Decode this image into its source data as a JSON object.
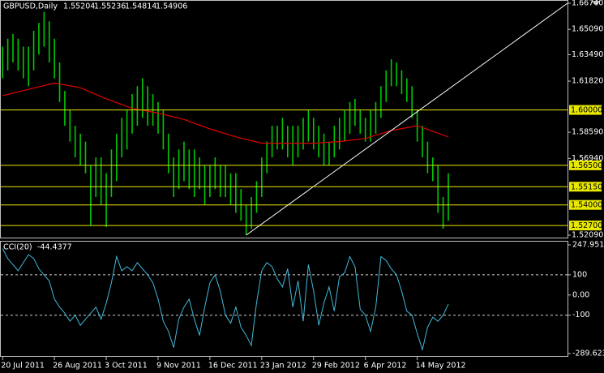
{
  "chart_data": [
    {
      "type": "ohlc",
      "title": "GBPUSD,Daily",
      "quote": [
        1.55204,
        1.55236,
        1.54814,
        1.54906
      ],
      "categories": [
        "20 Jul 2011",
        null,
        null,
        null,
        null,
        null,
        null,
        null,
        null,
        null,
        "26 Aug 2011",
        null,
        null,
        null,
        null,
        null,
        null,
        null,
        null,
        null,
        "3 Oct 2011",
        null,
        null,
        null,
        null,
        null,
        null,
        null,
        null,
        null,
        "9 Nov 2011",
        null,
        null,
        null,
        null,
        null,
        null,
        null,
        null,
        null,
        "16 Dec 2011",
        null,
        null,
        null,
        null,
        null,
        null,
        null,
        null,
        null,
        "23 Jan 2012",
        null,
        null,
        null,
        null,
        null,
        null,
        null,
        null,
        null,
        "29 Feb 2012",
        null,
        null,
        null,
        null,
        null,
        null,
        null,
        null,
        null,
        "6 Apr 2012",
        null,
        null,
        null,
        null,
        null,
        null,
        null,
        null,
        null,
        "14 May 2012",
        null,
        null,
        null,
        null,
        null,
        null
      ],
      "high": [
        1.64,
        1.645,
        1.648,
        1.645,
        1.64,
        1.64,
        1.65,
        1.655,
        1.662,
        1.656,
        1.645,
        1.63,
        1.612,
        1.6,
        1.59,
        1.585,
        1.58,
        1.565,
        1.57,
        1.57,
        1.56,
        1.575,
        1.585,
        1.595,
        1.6,
        1.61,
        1.615,
        1.62,
        1.615,
        1.61,
        1.605,
        1.6,
        1.585,
        1.57,
        1.575,
        1.58,
        1.575,
        1.575,
        1.57,
        1.565,
        1.565,
        1.57,
        1.565,
        1.565,
        1.56,
        1.56,
        1.55,
        1.54,
        1.545,
        1.555,
        1.57,
        1.58,
        1.59,
        1.59,
        1.595,
        1.59,
        1.59,
        1.59,
        1.595,
        1.6,
        1.595,
        1.59,
        1.585,
        1.58,
        1.59,
        1.595,
        1.6,
        1.605,
        1.607,
        1.6,
        1.595,
        1.6,
        1.605,
        1.615,
        1.625,
        1.632,
        1.63,
        1.625,
        1.62,
        1.615,
        1.6,
        1.59,
        1.58,
        1.57,
        1.565,
        1.545,
        1.56
      ],
      "low": [
        1.62,
        1.625,
        1.63,
        1.625,
        1.62,
        1.615,
        1.625,
        1.635,
        1.64,
        1.63,
        1.62,
        1.605,
        1.59,
        1.58,
        1.57,
        1.565,
        1.56,
        1.527,
        1.545,
        1.54,
        1.526,
        1.545,
        1.555,
        1.57,
        1.575,
        1.585,
        1.59,
        1.595,
        1.59,
        1.59,
        1.585,
        1.575,
        1.56,
        1.545,
        1.55,
        1.555,
        1.55,
        1.545,
        1.55,
        1.54,
        1.545,
        1.55,
        1.545,
        1.545,
        1.54,
        1.535,
        1.53,
        1.5209,
        1.525,
        1.535,
        1.545,
        1.56,
        1.57,
        1.575,
        1.575,
        1.57,
        1.565,
        1.57,
        1.575,
        1.58,
        1.575,
        1.57,
        1.565,
        1.565,
        1.57,
        1.575,
        1.58,
        1.585,
        1.59,
        1.585,
        1.58,
        1.58,
        1.585,
        1.595,
        1.605,
        1.615,
        1.615,
        1.61,
        1.605,
        1.595,
        1.58,
        1.57,
        1.56,
        1.555,
        1.535,
        1.525,
        1.53
      ],
      "color": "#00c800",
      "xlim": [
        -0.5,
        109
      ],
      "ylim": [
        1.5209,
        1.6674
      ],
      "yticks": [
        {
          "value": 1.6674,
          "label": "1.66740"
        },
        {
          "value": 1.6509,
          "label": "1.65090"
        },
        {
          "value": 1.6349,
          "label": "1.63490"
        },
        {
          "value": 1.6182,
          "label": "1.61820"
        },
        {
          "value": 1.5859,
          "label": "1.58590"
        },
        {
          "value": 1.5694,
          "label": "1.56940"
        },
        {
          "value": 1.5209,
          "label": "1.52090"
        }
      ],
      "levels": [
        {
          "value": 1.6,
          "label": "1.60000"
        },
        {
          "value": 1.565,
          "label": "1.56500"
        },
        {
          "value": 1.5515,
          "label": "1.55150"
        },
        {
          "value": 1.54,
          "label": "1.54000"
        },
        {
          "value": 1.527,
          "label": "1.52700"
        }
      ],
      "level_color": "#e8e800",
      "series": [
        {
          "color": "#e00000",
          "x": [
            0,
            5,
            10,
            15,
            20,
            25,
            30,
            35,
            40,
            45,
            50,
            55,
            60,
            65,
            70,
            75,
            80,
            86
          ],
          "values": [
            1.609,
            1.613,
            1.617,
            1.614,
            1.607,
            1.601,
            1.598,
            1.594,
            1.588,
            1.583,
            1.579,
            1.579,
            1.579,
            1.58,
            1.582,
            1.587,
            1.59,
            1.583
          ]
        }
      ],
      "trendline": {
        "color": "#ffffff",
        "x": [
          47,
          109
        ],
        "values": [
          1.5209,
          1.6674
        ]
      }
    },
    {
      "type": "line",
      "title": "CCI(20)",
      "current": -44.4377,
      "values": [
        230,
        180,
        150,
        120,
        160,
        200,
        180,
        130,
        100,
        70,
        -20,
        -60,
        -90,
        -130,
        -100,
        -150,
        -120,
        -90,
        -60,
        -120,
        -40,
        60,
        190,
        120,
        140,
        120,
        160,
        130,
        100,
        60,
        -20,
        -130,
        -180,
        -260,
        -120,
        -60,
        -20,
        -120,
        -200,
        -60,
        60,
        100,
        20,
        -100,
        -140,
        -60,
        -160,
        -200,
        -250,
        -40,
        120,
        160,
        140,
        80,
        40,
        130,
        -60,
        70,
        -130,
        150,
        20,
        -150,
        -40,
        40,
        -80,
        90,
        110,
        190,
        140,
        -70,
        -100,
        -180,
        -60,
        190,
        170,
        130,
        100,
        20,
        -80,
        -100,
        -190,
        -270,
        -160,
        -110,
        -130,
        -100,
        -44.4377
      ],
      "color": "#40b8d8",
      "ylim": [
        -289.623,
        247.9512
      ],
      "yticks": [
        247.9512,
        100,
        {
          "value": 0,
          "label": "0.00"
        },
        -100,
        -289.623
      ],
      "levels": [
        100,
        -100
      ]
    }
  ]
}
